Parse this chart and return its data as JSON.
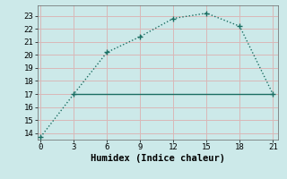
{
  "x": [
    0,
    3,
    6,
    9,
    12,
    15,
    18,
    21
  ],
  "y": [
    13.7,
    17.0,
    20.2,
    21.4,
    22.8,
    23.2,
    22.2,
    17.0
  ],
  "hline_y": 17.0,
  "hline_x_start": 3,
  "hline_x_end": 21,
  "xlim": [
    -0.3,
    21.5
  ],
  "ylim": [
    13.5,
    23.8
  ],
  "xticks": [
    0,
    3,
    6,
    9,
    12,
    15,
    18,
    21
  ],
  "yticks": [
    14,
    15,
    16,
    17,
    18,
    19,
    20,
    21,
    22,
    23
  ],
  "xlabel": "Humidex (Indice chaleur)",
  "line_color": "#1a6e62",
  "bg_color": "#cce9e9",
  "grid_color": "#d9b8b8",
  "marker": "+",
  "marker_size": 5,
  "linewidth": 1.0,
  "font_family": "monospace",
  "tick_fontsize": 6.5,
  "xlabel_fontsize": 7.5
}
